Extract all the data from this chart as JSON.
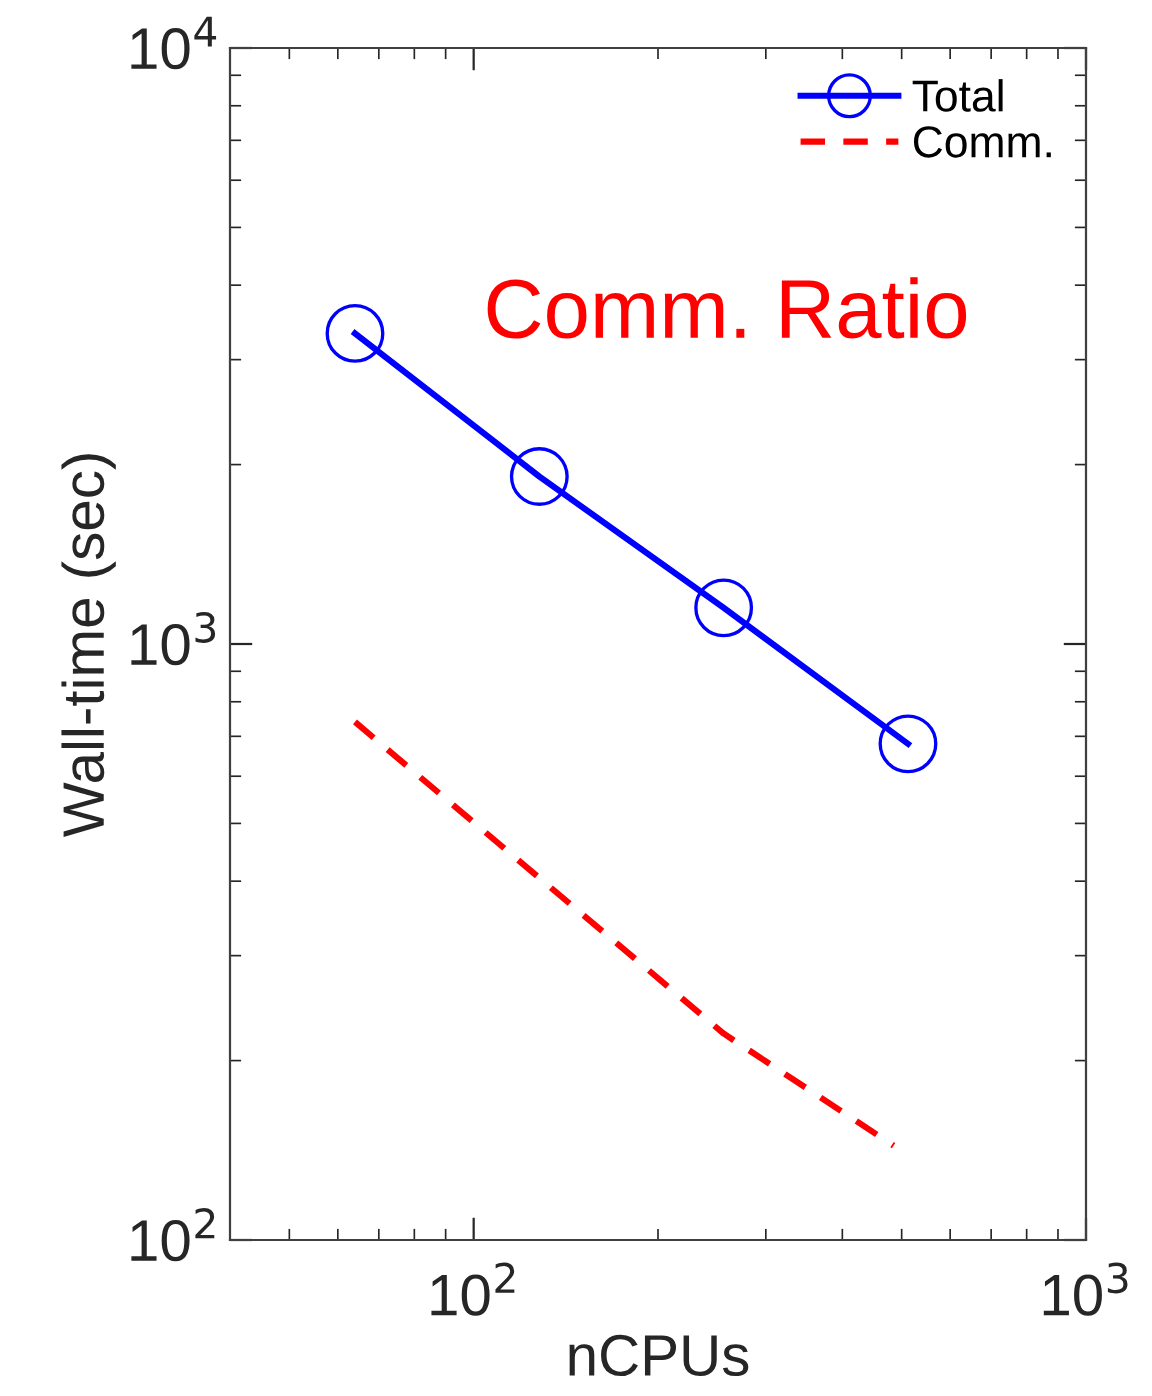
{
  "chart_data": {
    "type": "line",
    "xlabel": "nCPUs",
    "ylabel": "Wall-time (sec)",
    "log": "xy",
    "xlim": [
      40,
      1000
    ],
    "ylim": [
      100,
      10000
    ],
    "xticks": [
      {
        "value": 100,
        "label": "10$^{2}$"
      },
      {
        "value": 1000,
        "label": "10$^{3}$"
      }
    ],
    "yticks": [
      {
        "value": 100,
        "label": "10$^{2}$"
      },
      {
        "value": 1000,
        "label": "10$^{3}$"
      },
      {
        "value": 10000,
        "label": "10$^{4}$"
      }
    ],
    "series": [
      {
        "name": "Total",
        "color": "#0000ff",
        "x": [
          64,
          128,
          256,
          512
        ],
        "values": [
          3320,
          1910,
          1150,
          680
        ],
        "marker": "circle",
        "line_style": "solid"
      },
      {
        "name": "Comm.",
        "color": "#ff0000",
        "x": [
          64,
          128,
          256,
          485
        ],
        "values": [
          740,
          405,
          222,
          144
        ],
        "marker": "none",
        "line_style": "dashed"
      }
    ],
    "annotations": [
      "Comm. Ratio"
    ],
    "legend": "top right",
    "grid": false
  }
}
